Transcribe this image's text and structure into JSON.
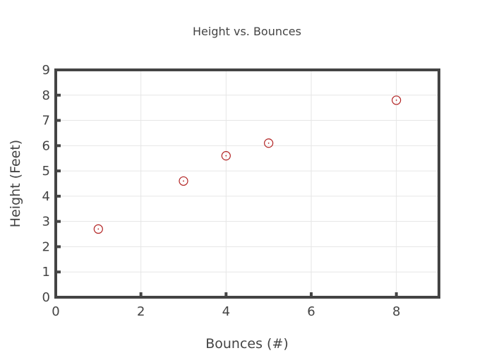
{
  "chart_data": {
    "type": "scatter",
    "title": "Height vs. Bounces",
    "xlabel": "Bounces (#)",
    "ylabel": "Height (Feet)",
    "xlim": [
      0,
      9
    ],
    "ylim": [
      0,
      9
    ],
    "x_ticks": [
      0,
      2,
      4,
      6,
      8
    ],
    "y_ticks": [
      0,
      1,
      2,
      3,
      4,
      5,
      6,
      7,
      8,
      9
    ],
    "grid": true,
    "marker": "circle-dot",
    "series": [
      {
        "color": "#b22222",
        "points": [
          {
            "x": 1,
            "y": 2.7
          },
          {
            "x": 3,
            "y": 4.6
          },
          {
            "x": 4,
            "y": 5.6
          },
          {
            "x": 5,
            "y": 6.1
          },
          {
            "x": 8,
            "y": 7.8
          }
        ]
      }
    ]
  }
}
